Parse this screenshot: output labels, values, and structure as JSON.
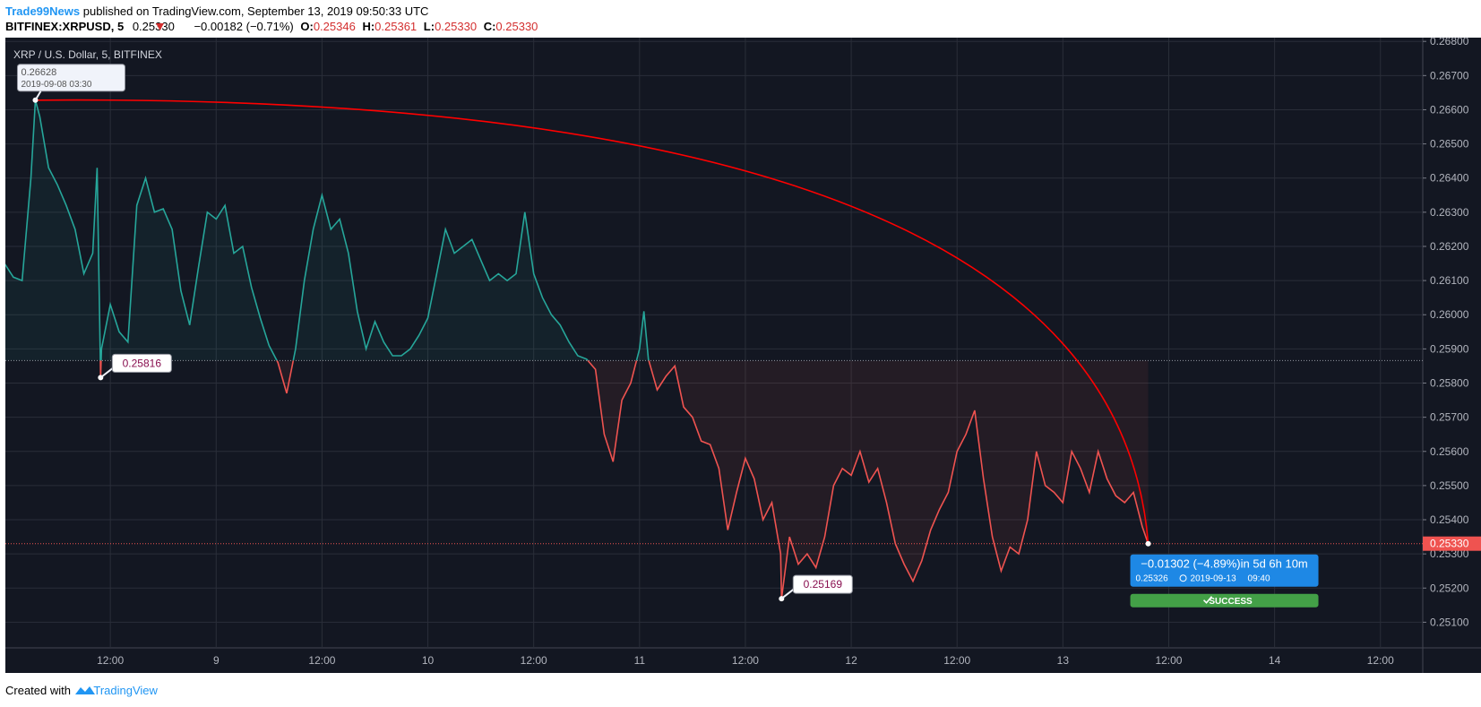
{
  "header": {
    "source": "Trade99News",
    "published": "published on TradingView.com, September 13, 2019 09:50:33 UTC",
    "symbol": "BITFINEX:XRPUSD, 5",
    "last": "0.25330",
    "change": "−0.00182 (−0.71%)",
    "o_label": "O:",
    "o": "0.25346",
    "h_label": "H:",
    "h": "0.25361",
    "l_label": "L:",
    "l": "0.25330",
    "c_label": "C:",
    "c": "0.25330"
  },
  "footer": {
    "created": "Created with",
    "brand": "TradingView"
  },
  "chart_data": {
    "type": "line",
    "title": "XRP / U.S. Dollar, 5, BITFINEX",
    "x": [
      0,
      1,
      2,
      3,
      3.5,
      4,
      5,
      6,
      7,
      8,
      9,
      10,
      10.5,
      10.9,
      11,
      12,
      13,
      14,
      15,
      16,
      17,
      18,
      19,
      20,
      21,
      22,
      23,
      24,
      25,
      26,
      27,
      28,
      29,
      30,
      31,
      32,
      33,
      34,
      35,
      36,
      37,
      38,
      39,
      40,
      41,
      42,
      43,
      44,
      45,
      46,
      47,
      48,
      49,
      50,
      51,
      52,
      53,
      54,
      55,
      56,
      57,
      58,
      59,
      60,
      61,
      62,
      63,
      64,
      65,
      66,
      67,
      68,
      69,
      70,
      71,
      72,
      72.5,
      73,
      74,
      75,
      76,
      77,
      78,
      79,
      80,
      81,
      82,
      83,
      84,
      85,
      86,
      87,
      88,
      88.1,
      89,
      90,
      91,
      92,
      93,
      94,
      95,
      96,
      97,
      98,
      99,
      100,
      101,
      102,
      103,
      104,
      105,
      106,
      107,
      108,
      109,
      110,
      111,
      112,
      113,
      114,
      115,
      116,
      117,
      118,
      119,
      120,
      121,
      122,
      123,
      124,
      125,
      126,
      127,
      128,
      129,
      129.67
    ],
    "values": [
      0.2615,
      0.2611,
      0.261,
      0.264,
      0.26628,
      0.2658,
      0.2643,
      0.2638,
      0.2632,
      0.2625,
      0.2612,
      0.2618,
      0.2643,
      0.25816,
      0.259,
      0.2603,
      0.2595,
      0.2592,
      0.2632,
      0.264,
      0.263,
      0.2631,
      0.2625,
      0.2607,
      0.2597,
      0.2614,
      0.263,
      0.2628,
      0.2632,
      0.2618,
      0.262,
      0.2608,
      0.2599,
      0.2591,
      0.2586,
      0.2577,
      0.259,
      0.261,
      0.2625,
      0.2635,
      0.2625,
      0.2628,
      0.2618,
      0.2601,
      0.259,
      0.2598,
      0.2592,
      0.2588,
      0.2588,
      0.259,
      0.2594,
      0.2599,
      0.2612,
      0.2625,
      0.2618,
      0.262,
      0.2622,
      0.2616,
      0.261,
      0.2612,
      0.261,
      0.2612,
      0.263,
      0.2612,
      0.2605,
      0.26,
      0.2597,
      0.2592,
      0.2588,
      0.2587,
      0.2584,
      0.2565,
      0.2557,
      0.2575,
      0.258,
      0.259,
      0.2601,
      0.2587,
      0.2578,
      0.2582,
      0.2585,
      0.2573,
      0.257,
      0.2563,
      0.2562,
      0.2555,
      0.2537,
      0.2548,
      0.2558,
      0.2552,
      0.254,
      0.2545,
      0.253,
      0.25169,
      0.2535,
      0.2527,
      0.253,
      0.2526,
      0.2535,
      0.255,
      0.2555,
      0.2553,
      0.256,
      0.2551,
      0.2555,
      0.2545,
      0.2533,
      0.2527,
      0.2522,
      0.2528,
      0.2537,
      0.2543,
      0.2548,
      0.256,
      0.2565,
      0.2572,
      0.2552,
      0.2535,
      0.2525,
      0.2532,
      0.253,
      0.254,
      0.256,
      0.255,
      0.2548,
      0.2545,
      0.256,
      0.2555,
      0.2548,
      0.256,
      0.2552,
      0.2547,
      0.2545,
      0.2548,
      0.2538,
      0.2533
    ],
    "colors": {
      "above": "#26a69a",
      "below": "#ef5350"
    },
    "baseline": 0.25866,
    "xlim": [
      0.1,
      160.8
    ],
    "ylim": [
      0.25025,
      0.26811
    ],
    "xticks": [
      {
        "value": 12,
        "label": "12:00"
      },
      {
        "value": 24,
        "label": "9"
      },
      {
        "value": 36,
        "label": "12:00"
      },
      {
        "value": 48,
        "label": "10"
      },
      {
        "value": 60,
        "label": "12:00"
      },
      {
        "value": 72,
        "label": "11"
      },
      {
        "value": 84,
        "label": "12:00"
      },
      {
        "value": 96,
        "label": "12"
      },
      {
        "value": 108,
        "label": "12:00"
      },
      {
        "value": 120,
        "label": "13"
      },
      {
        "value": 132,
        "label": "12:00"
      },
      {
        "value": 144,
        "label": "14"
      },
      {
        "value": 156,
        "label": "12:00"
      }
    ],
    "yticks": [
      {
        "value": 0.251,
        "label": "0.25100"
      },
      {
        "value": 0.252,
        "label": "0.25200"
      },
      {
        "value": 0.253,
        "label": "0.25300"
      },
      {
        "value": 0.254,
        "label": "0.25400"
      },
      {
        "value": 0.255,
        "label": "0.25500"
      },
      {
        "value": 0.256,
        "label": "0.25600"
      },
      {
        "value": 0.257,
        "label": "0.25700"
      },
      {
        "value": 0.258,
        "label": "0.25800"
      },
      {
        "value": 0.259,
        "label": "0.25900"
      },
      {
        "value": 0.26,
        "label": "0.26000"
      },
      {
        "value": 0.261,
        "label": "0.26100"
      },
      {
        "value": 0.262,
        "label": "0.26200"
      },
      {
        "value": 0.263,
        "label": "0.26300"
      },
      {
        "value": 0.264,
        "label": "0.26400"
      },
      {
        "value": 0.265,
        "label": "0.26500"
      },
      {
        "value": 0.266,
        "label": "0.26600"
      },
      {
        "value": 0.267,
        "label": "0.26700"
      },
      {
        "value": 0.268,
        "label": "0.26800"
      }
    ],
    "grid": true,
    "last_price": {
      "value": 0.2533,
      "label": "0.25330"
    },
    "annotations": [
      {
        "x": 3.5,
        "value": 0.26628,
        "text": "2019-09-08 03:30"
      },
      {
        "x": 10.9,
        "value": 0.25816
      },
      {
        "x": 88.1,
        "value": 0.25169
      }
    ],
    "measure": {
      "change": "−0.01302 (−4.89%)in 5d 6h 10m",
      "price": "0.25326",
      "date": "2019-09-13",
      "time": "09:40",
      "status": "SUCCESS"
    }
  }
}
